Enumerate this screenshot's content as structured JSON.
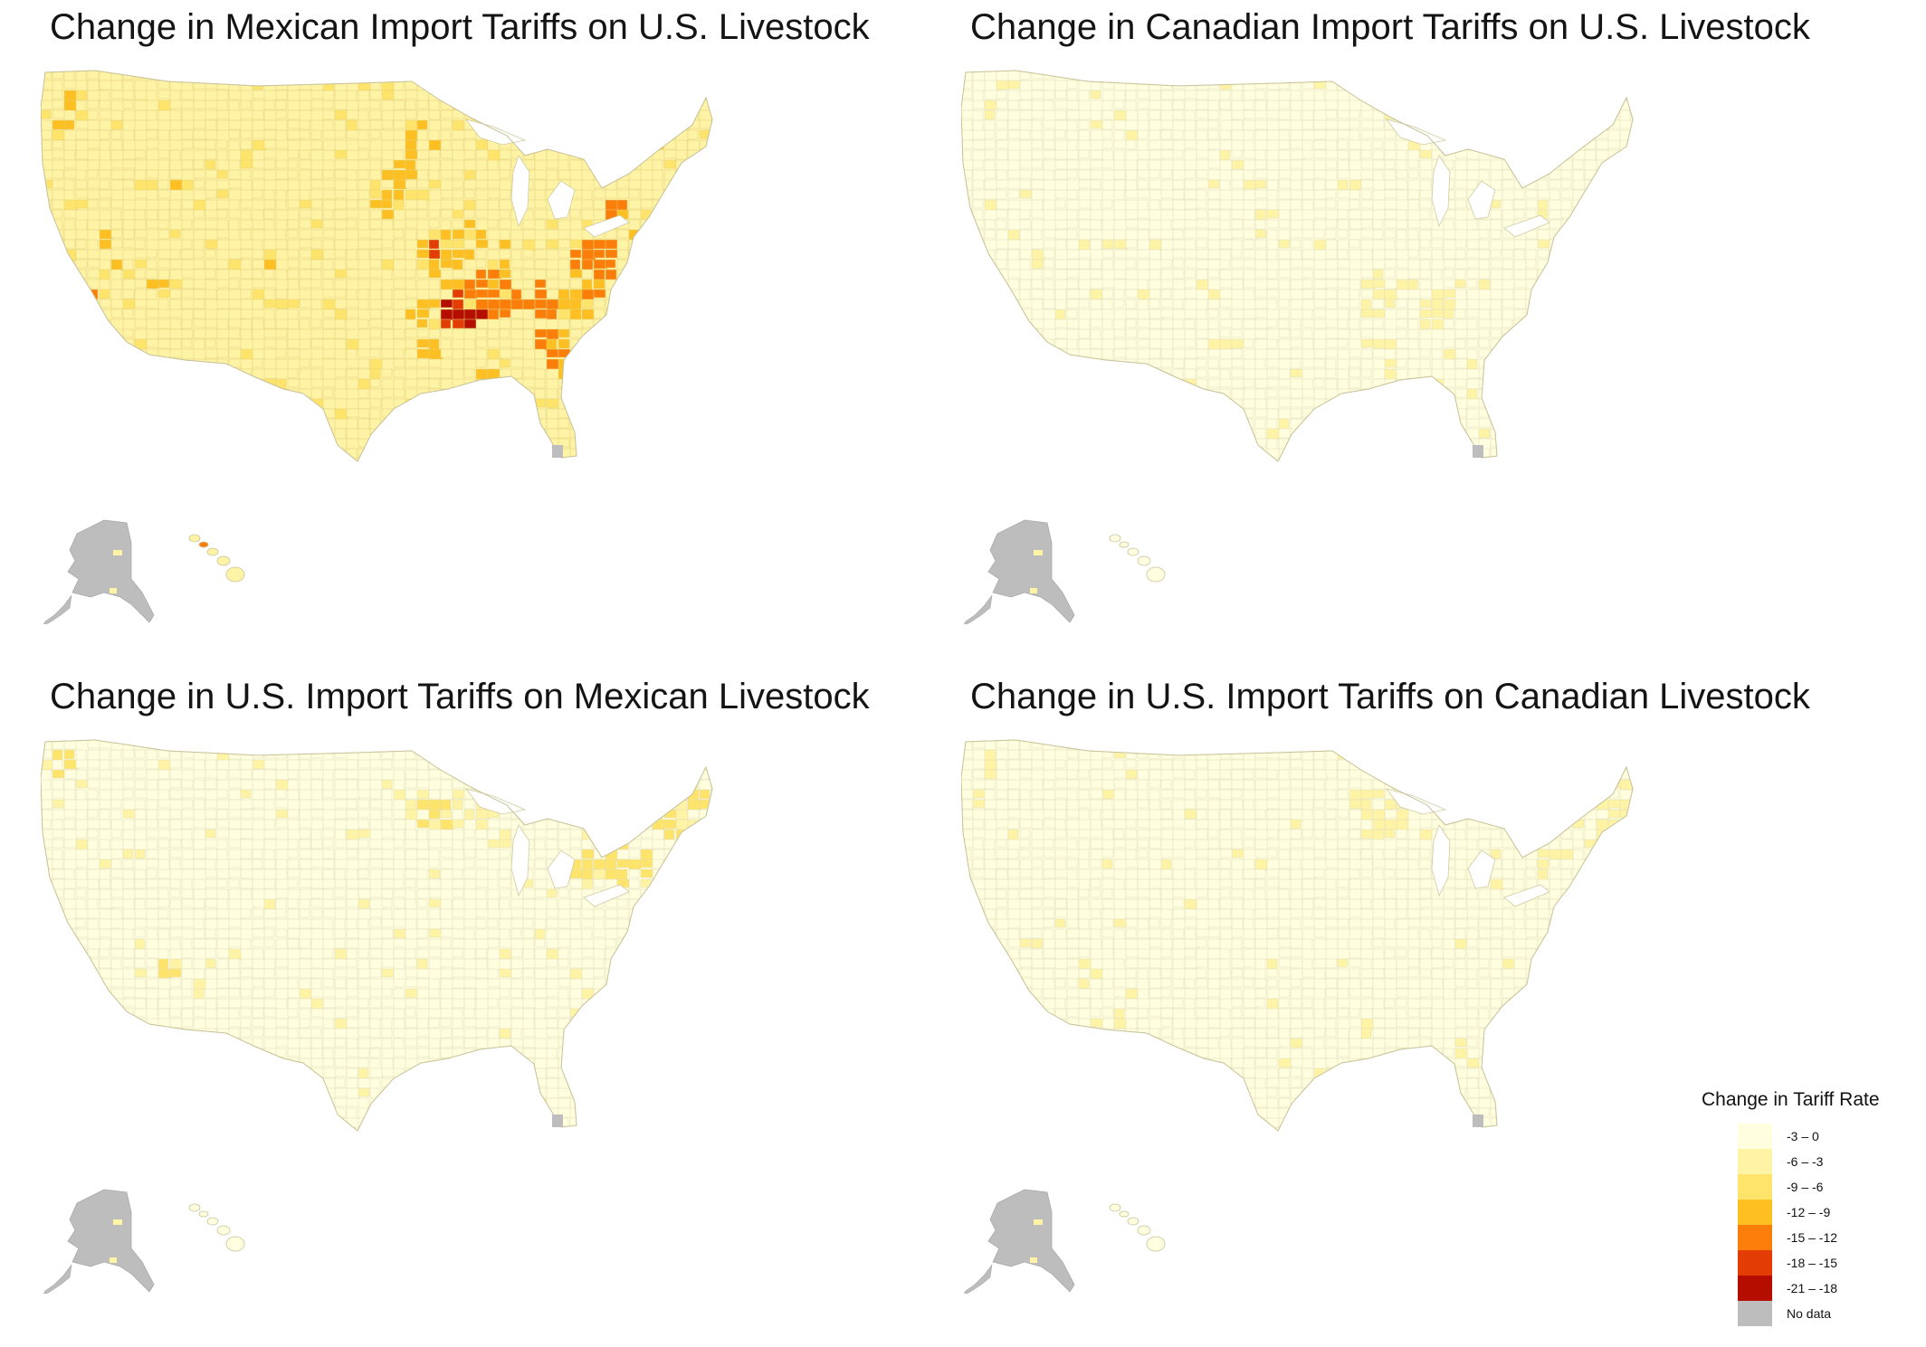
{
  "panels": [
    {
      "id": "mx-on-us",
      "title": "Change in Mexican Import Tariffs on U.S. Livestock",
      "scheme": "heavy"
    },
    {
      "id": "ca-on-us",
      "title": "Change in Canadian Import Tariffs on U.S. Livestock",
      "scheme": "light"
    },
    {
      "id": "us-on-mx",
      "title": "Change in U.S. Import Tariffs on Mexican Livestock",
      "scheme": "medium"
    },
    {
      "id": "us-on-ca",
      "title": "Change in U.S. Import Tariffs on Canadian Livestock",
      "scheme": "light-north"
    }
  ],
  "legend": {
    "title": "Change in Tariff Rate",
    "items": [
      {
        "label": "-3 – 0",
        "color": "#ffffe0"
      },
      {
        "label": "-6 – -3",
        "color": "#fff3a6"
      },
      {
        "label": "-9 – -6",
        "color": "#ffe46b"
      },
      {
        "label": "-12 – -9",
        "color": "#fdbf22"
      },
      {
        "label": "-15 – -12",
        "color": "#fb7e0b"
      },
      {
        "label": "-18 – -15",
        "color": "#e33c04"
      },
      {
        "label": "-21 – -18",
        "color": "#b50d00"
      },
      {
        "label": "No data",
        "color": "#bdbdbd"
      }
    ]
  }
}
